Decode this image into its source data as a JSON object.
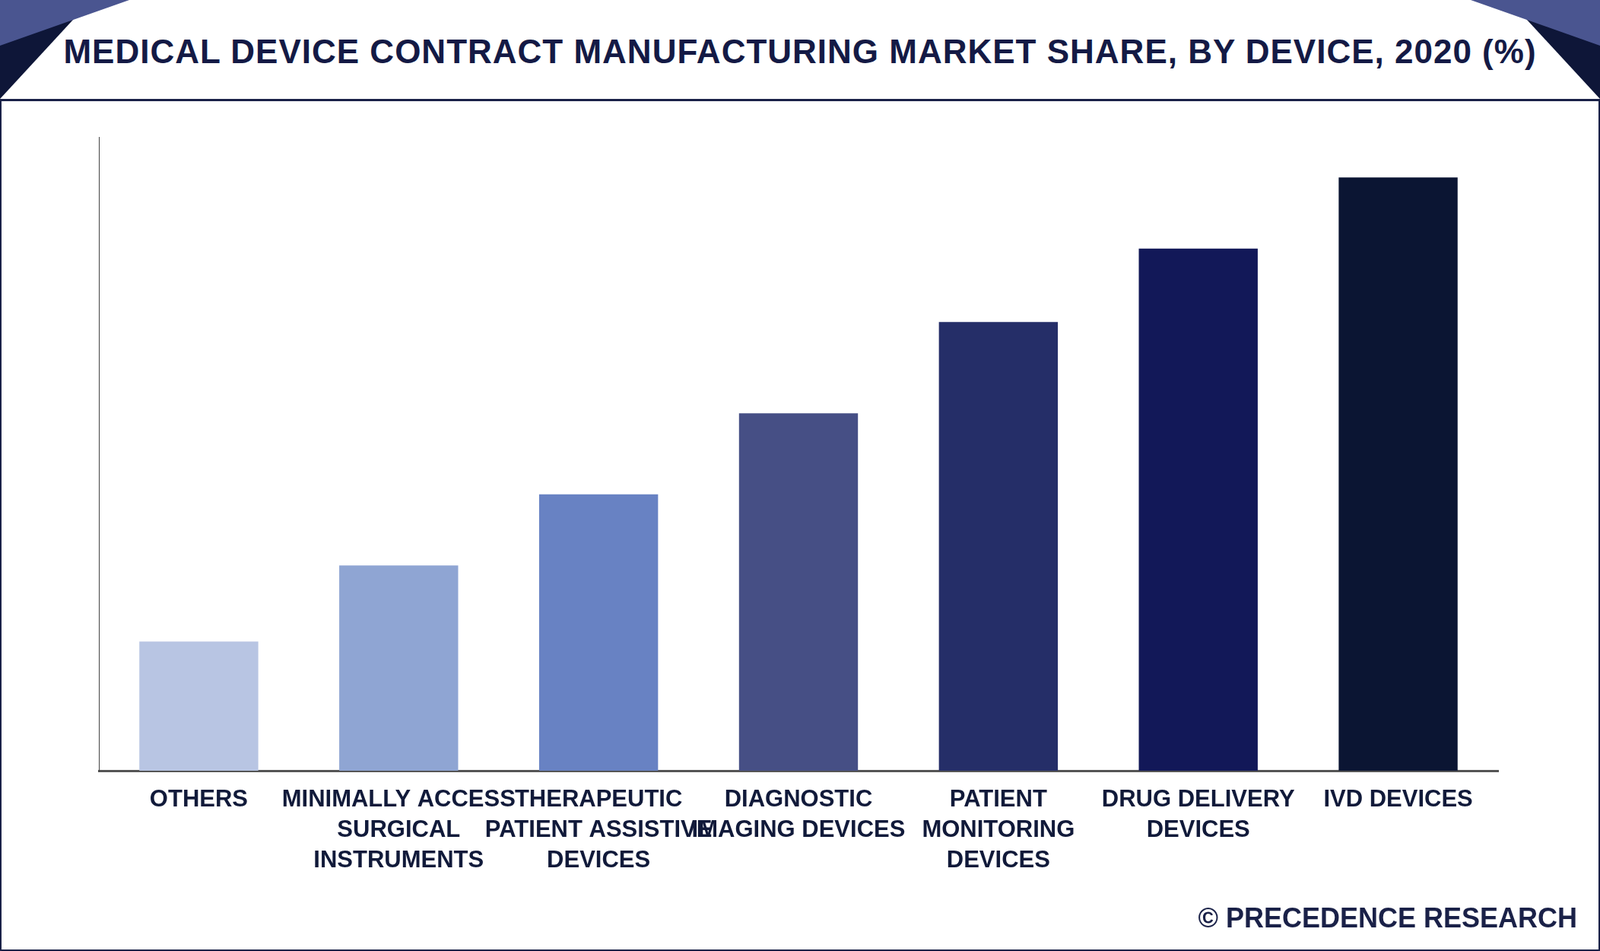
{
  "chart_data": {
    "type": "bar",
    "title": "MEDICAL DEVICE CONTRACT MANUFACTURING MARKET SHARE, BY DEVICE, 2020 (%)",
    "categories": [
      "OTHERS",
      "MINIMALLY ACCESS SURGICAL INSTRUMENTS",
      "THERAPEUTIC PATIENT ASSISTIVE DEVICES",
      "DIAGNOSTIC IMAGING DEVICES",
      "PATIENT MONITORING DEVICES",
      "DRUG DELIVERY DEVICES",
      "IVD DEVICES"
    ],
    "values": [
      5.1,
      8.1,
      10.9,
      14.1,
      17.7,
      20.6,
      23.4
    ],
    "colors": [
      "#b8c5e3",
      "#8fa5d3",
      "#6882c3",
      "#464f85",
      "#252e68",
      "#121858",
      "#0b1533"
    ],
    "ylim": [
      0,
      25
    ],
    "tick_labels": "x",
    "grid": false,
    "source": "© PRECEDENCE RESEARCH"
  }
}
